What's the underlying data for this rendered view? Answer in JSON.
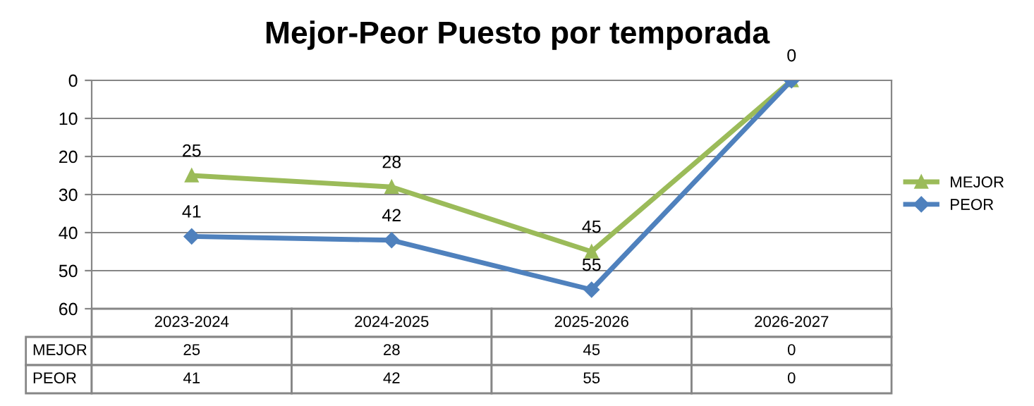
{
  "chart_data": {
    "type": "line",
    "title": "Mejor-Peor Puesto por temporada",
    "categories": [
      "2023-2024",
      "2024-2025",
      "2025-2026",
      "2026-2027"
    ],
    "series": [
      {
        "name": "MEJOR",
        "color": "#9bbb59",
        "marker": "triangle",
        "values": [
          25,
          28,
          45,
          0
        ],
        "value_labels": [
          "25",
          "28",
          "45",
          "0"
        ]
      },
      {
        "name": "PEOR",
        "color": "#4f81bd",
        "marker": "diamond",
        "values": [
          41,
          42,
          55,
          0
        ],
        "value_labels": [
          "41",
          "42",
          "55",
          "0"
        ]
      }
    ],
    "ylim": [
      60,
      0
    ],
    "yticks": [
      0,
      10,
      20,
      30,
      40,
      50,
      60
    ],
    "grid": "y",
    "legend": "right",
    "data_labels": true,
    "line_style": "solid"
  }
}
